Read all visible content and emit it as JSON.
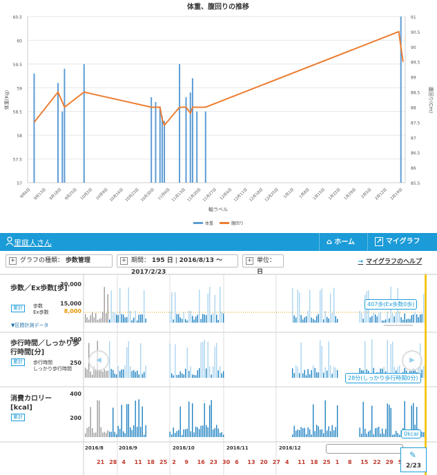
{
  "top_chart": {
    "colors": {
      "weight": "#5b9bd5",
      "waist": "#ed7d31"
    },
    "chart_data": {
      "type": "bar+line",
      "title": "体重、腹回りの推移",
      "xlabel": "軸ラベル",
      "ylabel_left": "体重(Kg)",
      "ylabel_right": "腹回り(Cm)",
      "ylim_left": [
        57,
        60.5
      ],
      "ylim_right": [
        85.5,
        91
      ],
      "yticks_left": [
        "57",
        "57.5",
        "58",
        "58.5",
        "59",
        "59.5",
        "60",
        "60.5"
      ],
      "yticks_right": [
        "85.5",
        "86",
        "86.5",
        "87",
        "87.5",
        "88",
        "88.5",
        "89",
        "89.5",
        "90",
        "90.5",
        "91"
      ],
      "x_ticks": [
        "9月6日",
        "9月13日",
        "9月18日",
        "9月25日",
        "10月2日",
        "10月9日",
        "10月16日",
        "10月23日",
        "10月30日",
        "11月6日",
        "11月13日",
        "11月20日",
        "11月27日",
        "12月4日",
        "12月11日",
        "12月18日",
        "12月25日",
        "1月1日",
        "1月8日",
        "1月15日",
        "1月22日",
        "1月29日",
        "2月5日",
        "2月12日",
        "2月19日"
      ],
      "grid": true,
      "legend_position": "bottom",
      "legend": [
        "体重",
        "腹回り"
      ],
      "weight_bars": [
        {
          "x": "9/6",
          "y": 59.3
        },
        {
          "x": "9/17",
          "y": 59.1
        },
        {
          "x": "9/19",
          "y": 58.5
        },
        {
          "x": "9/20",
          "y": 59.4
        },
        {
          "x": "9/29",
          "y": 59.5
        },
        {
          "x": "10/30",
          "y": 58.8
        },
        {
          "x": "11/1",
          "y": 58.7
        },
        {
          "x": "11/3",
          "y": 58.6
        },
        {
          "x": "11/4",
          "y": 58.4
        },
        {
          "x": "11/5",
          "y": 58.3
        },
        {
          "x": "11/12",
          "y": 59.5
        },
        {
          "x": "11/15",
          "y": 58.8
        },
        {
          "x": "11/17",
          "y": 58.9
        },
        {
          "x": "11/18",
          "y": 59.2
        },
        {
          "x": "11/20",
          "y": 58.5
        },
        {
          "x": "11/24",
          "y": 58.5
        },
        {
          "x": "2/22",
          "y": 60.5
        }
      ],
      "waist_line": [
        {
          "x": "9/6",
          "y": 87.5
        },
        {
          "x": "9/17",
          "y": 88.5
        },
        {
          "x": "9/20",
          "y": 88.0
        },
        {
          "x": "9/29",
          "y": 88.5
        },
        {
          "x": "10/30",
          "y": 88.0
        },
        {
          "x": "11/3",
          "y": 88.0
        },
        {
          "x": "11/4",
          "y": 87.6
        },
        {
          "x": "11/5",
          "y": 87.4
        },
        {
          "x": "11/12",
          "y": 88.0
        },
        {
          "x": "11/15",
          "y": 88.0
        },
        {
          "x": "11/17",
          "y": 87.8
        },
        {
          "x": "11/18",
          "y": 88.0
        },
        {
          "x": "11/24",
          "y": 88.0
        },
        {
          "x": "2/21",
          "y": 90.5
        },
        {
          "x": "2/23",
          "y": 89.5
        }
      ]
    }
  },
  "nav": {
    "user_label": "里庭人さん",
    "home_label": "ホーム",
    "mygraph_label": "マイグラフ"
  },
  "toolbar": {
    "graph_type_label": "グラフの種類：",
    "graph_type_value": "歩数管理",
    "period_label": "期間：",
    "period_days": "195 日",
    "period_range": "2016/8/13 ～ 2017/2/23",
    "unit_label": "単位：",
    "unit_value": "日",
    "help_label": "マイグラフのヘルプ"
  },
  "graphs": {
    "steps": {
      "title": "歩数／Ex歩数[歩]",
      "badge": "累計",
      "legend1": "歩数",
      "legend2": "Ex歩数",
      "interval_label": "▼区間計測データ",
      "ytick_top": "30,000",
      "ytick_mid": "15,000",
      "target": "8,000",
      "callout": "407歩(Ex歩数0歩)"
    },
    "walk_time": {
      "title": "歩行時間／しっかり歩行時間[分]",
      "badge": "累計",
      "legend1": "歩行時間",
      "legend2": "しっかり歩行時間",
      "ytick_top": "500",
      "ytick_mid": "250",
      "callout": "28分(しっかり歩行時間0分)"
    },
    "calorie": {
      "title": "消費カロリー[kcal]",
      "badge": "累計",
      "ytick_top": "400",
      "ytick_mid": "200",
      "callout": "0kcal"
    }
  },
  "timeline": {
    "months": [
      "2016/8",
      "2016/9",
      "2016/10",
      "2016/11",
      "2016/12"
    ],
    "days": [
      "21",
      "28",
      "4",
      "11",
      "18",
      "25",
      "2",
      "9",
      "16",
      "23",
      "30",
      "6",
      "13",
      "20",
      "27",
      "4",
      "11",
      "18",
      "25",
      "1",
      "8",
      "15",
      "22",
      "29",
      "5"
    ],
    "page": "2/23"
  }
}
